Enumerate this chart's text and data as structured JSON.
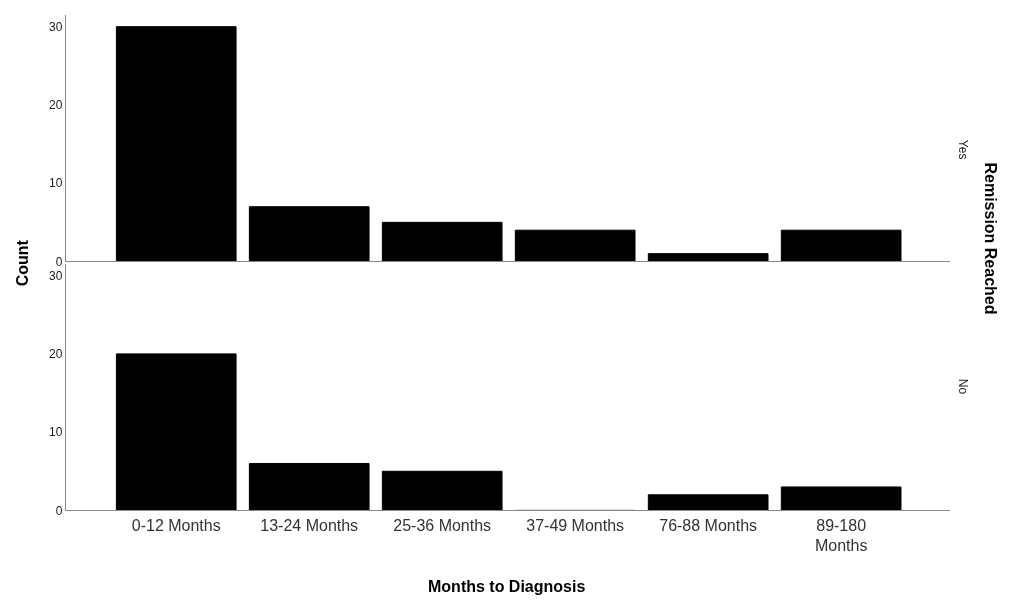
{
  "chart_data": [
    {
      "type": "bar",
      "title": "Yes",
      "ylabel": "Count",
      "annotations": [
        "Remission Reached"
      ],
      "categories": [
        null,
        null,
        null,
        null,
        null,
        null
      ],
      "values": [
        30,
        7,
        5,
        4,
        1,
        4
      ],
      "color": "#000000",
      "ylim": [
        0,
        31.5
      ],
      "yticks": [
        0,
        10,
        20,
        30
      ],
      "tick_labels": "y"
    },
    {
      "type": "bar",
      "title": "No",
      "xlabel": "Months to Diagnosis",
      "categories": [
        "0-12 Months",
        "13-24 Months",
        "25-36 Months",
        "37-49 Months",
        "76-88 Months",
        "89-180 Months"
      ],
      "values": [
        20,
        6,
        5,
        0,
        2,
        3
      ],
      "color": "#000000",
      "ylim": [
        0,
        31.5
      ],
      "yticks": [
        0,
        10,
        20,
        30
      ]
    }
  ]
}
